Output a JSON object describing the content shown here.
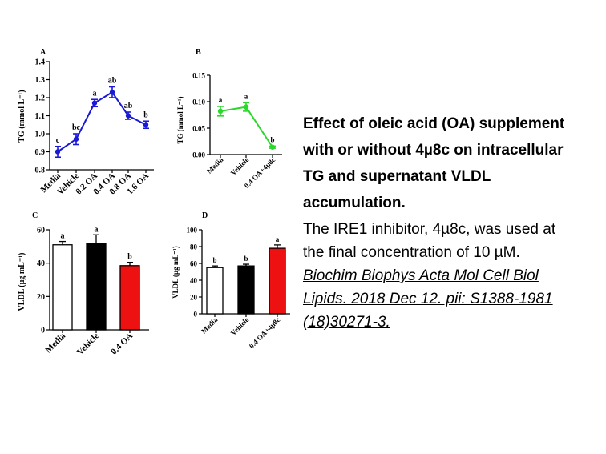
{
  "caption": {
    "title_lines": [
      "Effect of oleic acid (OA) supplement",
      "with or without 4µ8c on intracellular",
      "TG and supernatant VLDL",
      "accumulation."
    ],
    "body_lines": [
      "The IRE1 inhibitor, 4µ8c, was used at",
      "the final concentration of 10 µM."
    ],
    "citation_lines": [
      "Biochim Biophys Acta Mol Cell Biol",
      "Lipids. 2018 Dec 12. pii: S1388-1981",
      "(18)30271-3."
    ]
  },
  "chart_data": [
    {
      "panel": "A",
      "type": "line",
      "color": "#1a1ad6",
      "categories": [
        "Media",
        "Vehicle",
        "0.2 OA",
        "0.4 OA",
        "0.8 OA",
        "1.6 OA"
      ],
      "values": [
        0.9,
        0.97,
        1.17,
        1.23,
        1.1,
        1.05
      ],
      "errors": [
        0.03,
        0.03,
        0.02,
        0.03,
        0.02,
        0.02
      ],
      "letters": [
        "c",
        "bc",
        "a",
        "ab",
        "ab",
        "b"
      ],
      "ylabel": "TG (mmol L⁻¹)",
      "ylim": [
        0.8,
        1.4
      ],
      "yticks": [
        "0.8",
        "0.9",
        "1.0",
        "1.1",
        "1.2",
        "1.3",
        "1.4"
      ]
    },
    {
      "panel": "B",
      "type": "line",
      "color": "#2ad82a",
      "categories": [
        "Media",
        "Vehicle",
        "0.4 OA+4µ8c"
      ],
      "values": [
        0.082,
        0.09,
        0.014
      ],
      "errors": [
        0.009,
        0.008,
        0.002
      ],
      "letters": [
        "a",
        "a",
        "b"
      ],
      "ylabel": "TG (mmol L⁻¹)",
      "ylim": [
        0,
        0.15
      ],
      "yticks": [
        "0.00",
        "0.05",
        "0.10",
        "0.15"
      ]
    },
    {
      "panel": "C",
      "type": "bar",
      "categories": [
        "Media",
        "Vehicle",
        "0.4 OA"
      ],
      "values": [
        51,
        52,
        38.5
      ],
      "errors": [
        2,
        5,
        2
      ],
      "letters": [
        "a",
        "a",
        "b"
      ],
      "colors": [
        "#ffffff",
        "#000000",
        "#ee1111"
      ],
      "ylabel": "VLDL (µg mL⁻¹)",
      "ylim": [
        0,
        60
      ],
      "yticks": [
        "0",
        "20",
        "40",
        "60"
      ]
    },
    {
      "panel": "D",
      "type": "bar",
      "categories": [
        "Media",
        "Vehicle",
        "0.4 OA+4µ8c"
      ],
      "values": [
        55,
        57,
        78
      ],
      "errors": [
        2,
        2,
        4
      ],
      "letters": [
        "b",
        "b",
        "a"
      ],
      "colors": [
        "#ffffff",
        "#000000",
        "#ee1111"
      ],
      "ylabel": "VLDL (µg mL⁻¹)",
      "ylim": [
        0,
        100
      ],
      "yticks": [
        "0",
        "20",
        "40",
        "60",
        "80",
        "100"
      ]
    }
  ]
}
